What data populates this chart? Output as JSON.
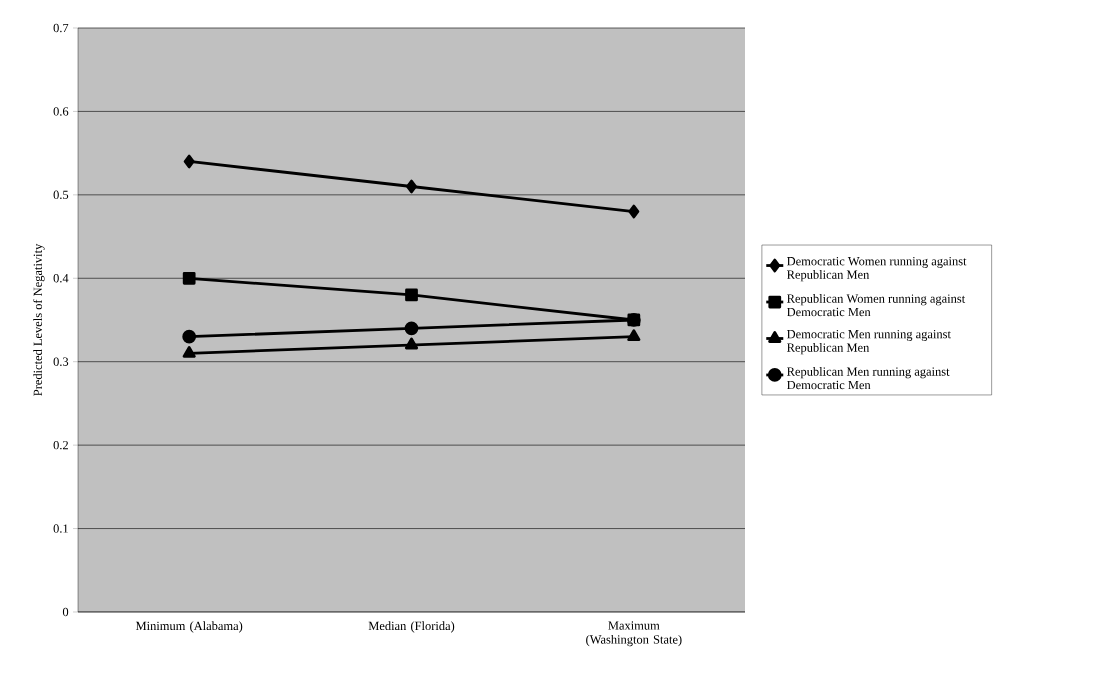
{
  "chart_data": {
    "type": "line",
    "ylabel": "Predicted Levels of Negativity",
    "categories": [
      "Minimum (Alabama)",
      "Median (Florida)",
      "Maximum (Washington State)"
    ],
    "series": [
      {
        "name": "Democratic Women running against Republican Men",
        "color": "#000000",
        "marker": "diamond",
        "values": [
          0.54,
          0.51,
          0.48
        ]
      },
      {
        "name": "Republican Women running against Democratic Men",
        "color": "#000000",
        "marker": "square",
        "values": [
          0.4,
          0.38,
          0.35
        ]
      },
      {
        "name": "Democratic Men running against Republican Men",
        "color": "#000000",
        "marker": "triangle",
        "values": [
          0.31,
          0.32,
          0.33
        ]
      },
      {
        "name": "Republican Men running against Democratic Men",
        "color": "#000000",
        "marker": "circle",
        "values": [
          0.33,
          0.34,
          0.35
        ]
      }
    ],
    "ylim": [
      0,
      0.7
    ],
    "yticks": [
      0,
      0.1,
      0.2,
      0.3,
      0.4,
      0.5,
      0.6,
      0.7
    ],
    "grid": "y",
    "legend": "right",
    "line_style": "solid"
  }
}
